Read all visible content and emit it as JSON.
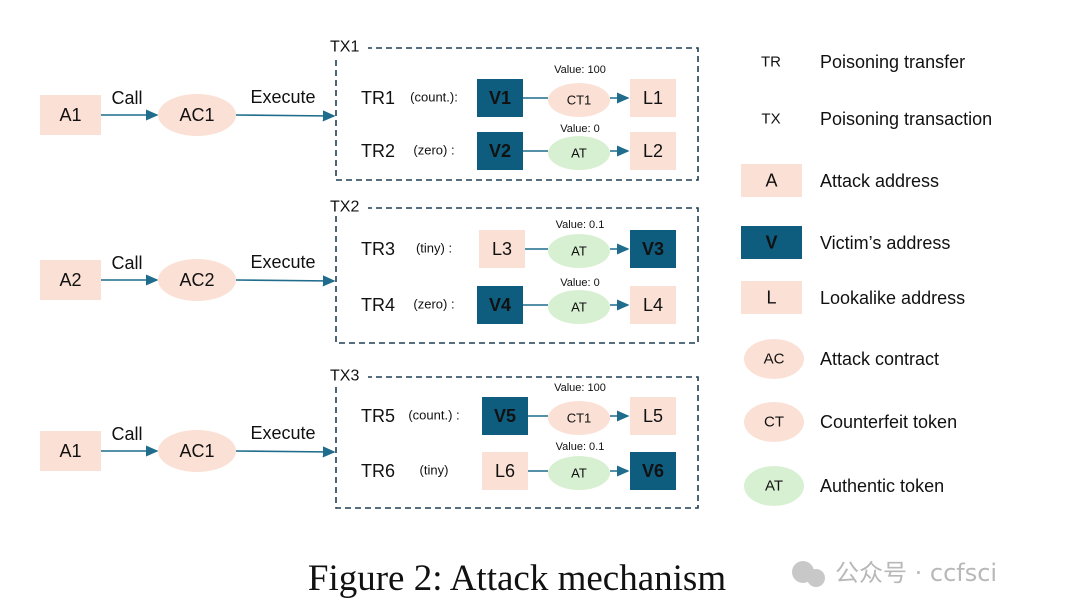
{
  "colors": {
    "attack": "#fbe0d5",
    "victim": "#0e5c7e",
    "authentic": "#d8f0d2",
    "arrow": "#1f6c8c",
    "dash": "#1f3f52"
  },
  "rows": [
    {
      "attacker": "A1",
      "call": "Call",
      "contract": "AC1",
      "execute": "Execute",
      "tx": "TX1",
      "transfers": [
        {
          "id": "TR1",
          "kind": "(count.):",
          "from": {
            "label": "V1",
            "type": "victim"
          },
          "token": {
            "label": "CT1",
            "type": "counterfeit"
          },
          "to": {
            "label": "L1",
            "type": "lookalike"
          },
          "value": "Value: 100"
        },
        {
          "id": "TR2",
          "kind": "(zero) :",
          "from": {
            "label": "V2",
            "type": "victim"
          },
          "token": {
            "label": "AT",
            "type": "authentic"
          },
          "to": {
            "label": "L2",
            "type": "lookalike"
          },
          "value": "Value: 0"
        }
      ]
    },
    {
      "attacker": "A2",
      "call": "Call",
      "contract": "AC2",
      "execute": "Execute",
      "tx": "TX2",
      "transfers": [
        {
          "id": "TR3",
          "kind": "(tiny) :",
          "from": {
            "label": "L3",
            "type": "lookalike"
          },
          "token": {
            "label": "AT",
            "type": "authentic"
          },
          "to": {
            "label": "V3",
            "type": "victim"
          },
          "value": "Value: 0.1"
        },
        {
          "id": "TR4",
          "kind": "(zero) :",
          "from": {
            "label": "V4",
            "type": "victim"
          },
          "token": {
            "label": "AT",
            "type": "authentic"
          },
          "to": {
            "label": "L4",
            "type": "lookalike"
          },
          "value": "Value: 0"
        }
      ]
    },
    {
      "attacker": "A1",
      "call": "Call",
      "contract": "AC1",
      "execute": "Execute",
      "tx": "TX3",
      "transfers": [
        {
          "id": "TR5",
          "kind": "(count.) :",
          "from": {
            "label": "V5",
            "type": "victim"
          },
          "token": {
            "label": "CT1",
            "type": "counterfeit"
          },
          "to": {
            "label": "L5",
            "type": "lookalike"
          },
          "value": "Value: 100"
        },
        {
          "id": "TR6",
          "kind": "(tiny)",
          "from": {
            "label": "L6",
            "type": "lookalike"
          },
          "token": {
            "label": "AT",
            "type": "authentic"
          },
          "to": {
            "label": "V6",
            "type": "victim"
          },
          "value": "Value: 0.1"
        }
      ]
    }
  ],
  "legend": [
    {
      "symbol": "TR",
      "shape": "none",
      "text": "Poisoning transfer"
    },
    {
      "symbol": "TX",
      "shape": "none",
      "text": "Poisoning transaction"
    },
    {
      "symbol": "A",
      "shape": "box-attack",
      "text": "Attack address"
    },
    {
      "symbol": "V",
      "shape": "box-victim",
      "text": "Victim’s address"
    },
    {
      "symbol": "L",
      "shape": "box-attack",
      "text": "Lookalike address"
    },
    {
      "symbol": "AC",
      "shape": "ellipse-attack",
      "text": "Attack contract"
    },
    {
      "symbol": "CT",
      "shape": "ellipse-attack",
      "text": "Counterfeit token"
    },
    {
      "symbol": "AT",
      "shape": "ellipse-authentic",
      "text": "Authentic token"
    }
  ],
  "caption": "Figure 2: Attack mechanism",
  "watermark": "公众号 · ccfsci"
}
